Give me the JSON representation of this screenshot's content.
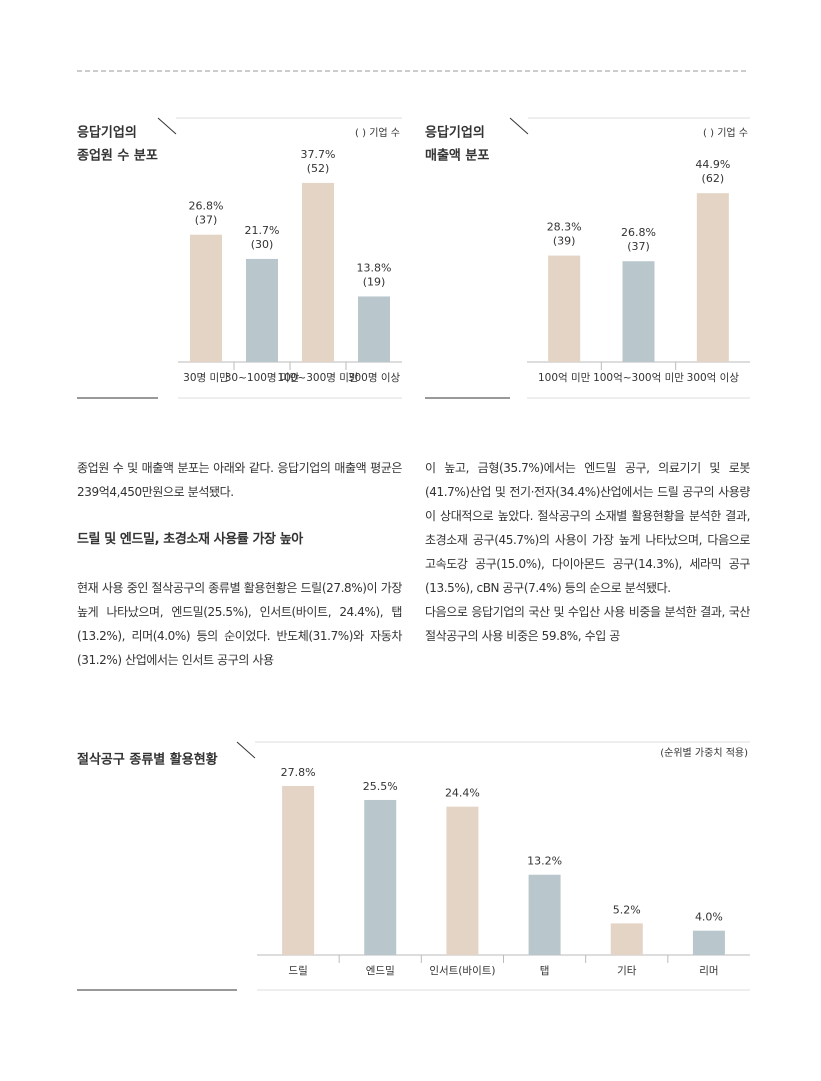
{
  "chart_data": [
    {
      "type": "bar",
      "title": [
        "응답기업의",
        "종업원 수 분포"
      ],
      "note": "( ) 기업 수",
      "categories": [
        "30명 미만",
        "30~100명 미만",
        "100~300명 미만",
        "300명 이상"
      ],
      "values": [
        26.8,
        21.7,
        37.7,
        13.8
      ],
      "value_labels": [
        "26.8%",
        "21.7%",
        "37.7%",
        "13.8%"
      ],
      "counts": [
        37,
        30,
        52,
        19
      ],
      "count_labels": [
        "(37)",
        "(30)",
        "(52)",
        "(19)"
      ],
      "colors": [
        "#e3d4c5",
        "#b9c7cd",
        "#e3d4c5",
        "#b9c7cd"
      ]
    },
    {
      "type": "bar",
      "title": [
        "응답기업의",
        "매출액 분포"
      ],
      "note": "( ) 기업 수",
      "categories": [
        "100억 미만",
        "100억~300억 미만",
        "300억 이상"
      ],
      "values": [
        28.3,
        26.8,
        44.9
      ],
      "value_labels": [
        "28.3%",
        "26.8%",
        "44.9%"
      ],
      "counts": [
        39,
        37,
        62
      ],
      "count_labels": [
        "(39)",
        "(37)",
        "(62)"
      ],
      "colors": [
        "#e3d4c5",
        "#b9c7cd",
        "#e3d4c5"
      ]
    },
    {
      "type": "bar",
      "title": [
        "절삭공구 종류별 활용현황"
      ],
      "note": "(순위별 가중치 적용)",
      "categories": [
        "드릴",
        "엔드밀",
        "인서트(바이트)",
        "탭",
        "기타",
        "리머"
      ],
      "values": [
        27.8,
        25.5,
        24.4,
        13.2,
        5.2,
        4.0
      ],
      "value_labels": [
        "27.8%",
        "25.5%",
        "24.4%",
        "13.2%",
        "5.2%",
        "4.0%"
      ],
      "colors": [
        "#e3d4c5",
        "#b9c7cd",
        "#e3d4c5",
        "#b9c7cd",
        "#e3d4c5",
        "#b9c7cd"
      ]
    }
  ],
  "body": {
    "left": [
      "종업원 수 및 매출액 분포는 아래와 같다. 응답기업의 매출액 평균은 239억4,450만원으로 분석됐다.",
      "드릴 및 엔드밀, 초경소재 사용률 가장 높아",
      "현재 사용 중인 절삭공구의 종류별 활용현황은 드릴(27.8%)이 가장 높게 나타났으며, 엔드밀(25.5%), 인서트(바이트, 24.4%), 탭(13.2%), 리머(4.0%) 등의 순이었다. 반도체(31.7%)와 자동차(31.2%) 산업에서는 인서트 공구의 사용"
    ],
    "right": [
      "이 높고, 금형(35.7%)에서는 엔드밀 공구, 의료기기 및 로봇(41.7%)산업 및 전기·전자(34.4%)산업에서는 드릴 공구의 사용량이 상대적으로 높았다. 절삭공구의 소재별 활용현황을 분석한 결과, 초경소재 공구(45.7%)의 사용이 가장 높게 나타났으며, 다음으로 고속도강 공구(15.0%), 다이아몬드 공구(14.3%), 세라믹 공구(13.5%), cBN 공구(7.4%) 등의 순으로 분석됐다.",
      "다음으로 응답기업의 국산 및 수입산 사용 비중을 분석한 결과, 국산 절삭공구의 사용 비중은 59.8%, 수입 공"
    ]
  }
}
